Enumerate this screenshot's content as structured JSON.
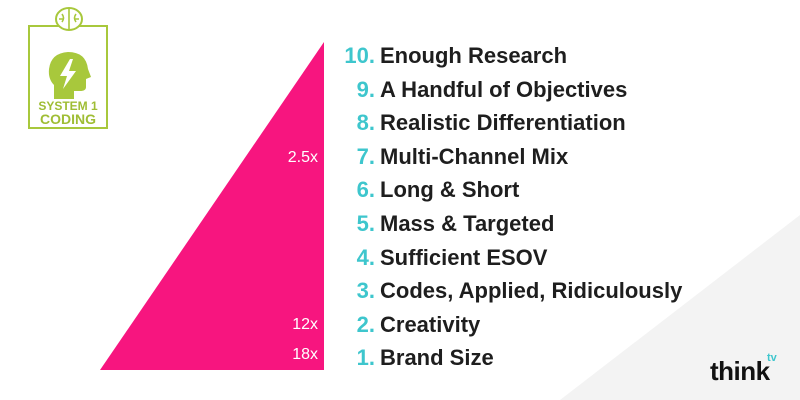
{
  "logo": {
    "line1": "SYSTEM 1",
    "line2": "CODING",
    "color": "#a8c83c"
  },
  "pyramid": {
    "color": "#f7157f",
    "multipliers": {
      "top": "2.5x",
      "middle": "12x",
      "bottom": "18x"
    }
  },
  "colors": {
    "number": "#3ec6cd",
    "label": "#1e1e1e"
  },
  "list": [
    {
      "num": "10.",
      "label": "Enough Research"
    },
    {
      "num": "9.",
      "label": "A Handful of Objectives"
    },
    {
      "num": "8.",
      "label": "Realistic Differentiation"
    },
    {
      "num": "7.",
      "label": "Multi-Channel Mix"
    },
    {
      "num": "6.",
      "label": "Long & Short"
    },
    {
      "num": "5.",
      "label": "Mass & Targeted"
    },
    {
      "num": "4.",
      "label": "Sufficient ESOV"
    },
    {
      "num": "3.",
      "label": "Codes, Applied, Ridiculously"
    },
    {
      "num": "2.",
      "label": "Creativity"
    },
    {
      "num": "1.",
      "label": "Brand Size"
    }
  ],
  "brand": {
    "think": "think",
    "tv": "tv"
  }
}
